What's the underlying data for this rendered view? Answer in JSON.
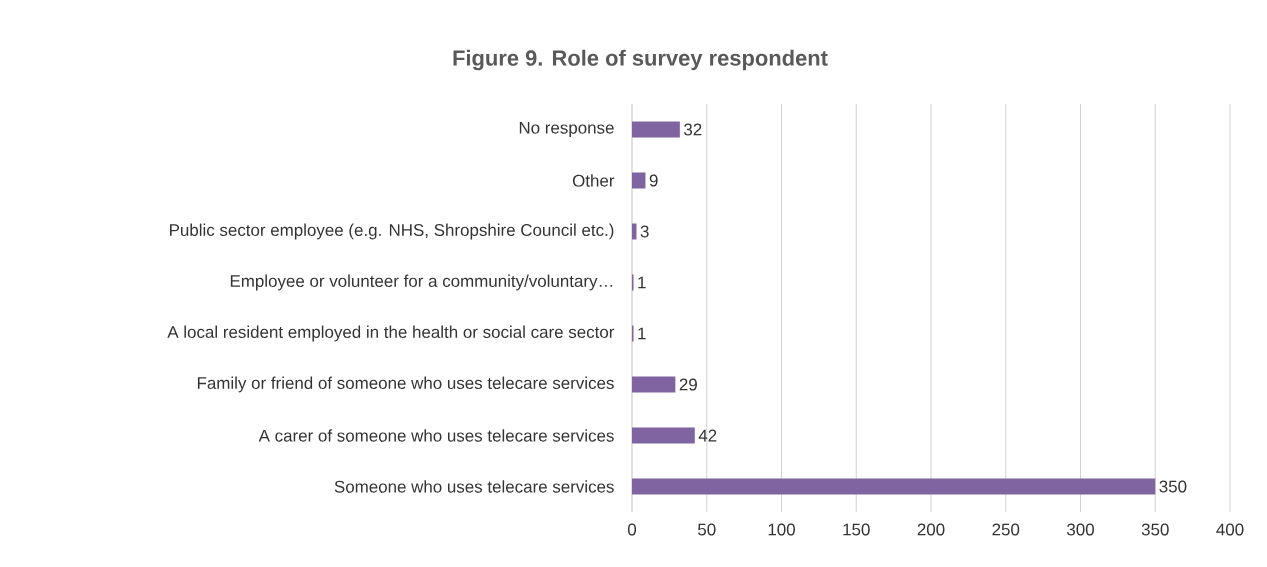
{
  "chart_data": {
    "type": "bar",
    "orientation": "horizontal",
    "title": "Figure 9.  Role of survey respondent",
    "categories": [
      "No response",
      "Other",
      "Public sector employee (e.g. NHS, Shropshire Council etc.)",
      "Employee or volunteer for a community/voluntary…",
      "A local resident employed in the health or social care sector",
      "Family or friend of someone who uses telecare services",
      "A carer of someone who uses telecare services",
      "Someone who uses telecare services"
    ],
    "values": [
      32,
      9,
      3,
      1,
      1,
      29,
      42,
      350
    ],
    "color": "#8064a2",
    "xlim": [
      0,
      400
    ],
    "xticks": [
      0,
      50,
      100,
      150,
      200,
      250,
      300,
      350,
      400
    ],
    "grid": "x",
    "data_labels": true
  }
}
